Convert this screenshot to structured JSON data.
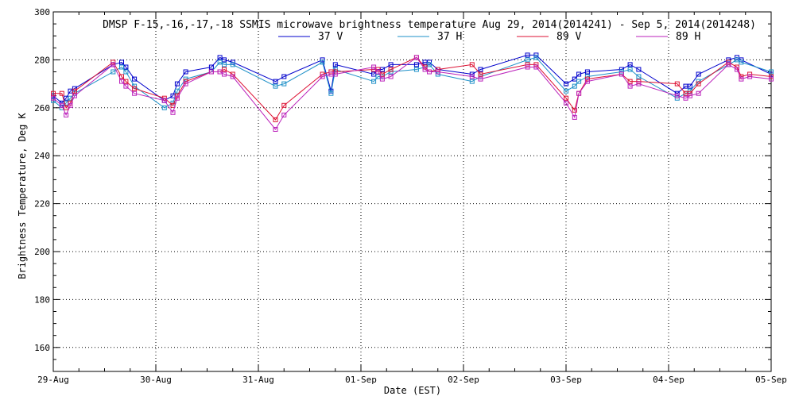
{
  "chart_data": {
    "type": "line",
    "title": "DMSP F-15,-16,-17,-18 SSMIS microwave brightness temperature Aug 29, 2014(2014241) - Sep  5, 2014(2014248)",
    "xlabel": "Date (EST)",
    "ylabel": "Brightness Temperature, Deg K",
    "xlim": [
      "2014-08-29T00:00",
      "2014-09-05T00:00"
    ],
    "ylim": [
      150,
      300
    ],
    "yticks": [
      160,
      180,
      200,
      220,
      240,
      260,
      280,
      300
    ],
    "xticks": [
      "29-Aug",
      "30-Aug",
      "31-Aug",
      "01-Sep",
      "02-Sep",
      "03-Sep",
      "04-Sep",
      "05-Sep"
    ],
    "grid": true,
    "legend_position": "top-center",
    "series": [
      {
        "name": "37 V",
        "color": "#0000cc",
        "points": [
          [
            "2014-08-29T00:00",
            265
          ],
          [
            "2014-08-29T02:00",
            262
          ],
          [
            "2014-08-29T03:00",
            264
          ],
          [
            "2014-08-29T04:00",
            267
          ],
          [
            "2014-08-29T05:00",
            268
          ],
          [
            "2014-08-29T14:00",
            278
          ],
          [
            "2014-08-29T16:00",
            279
          ],
          [
            "2014-08-29T17:00",
            277
          ],
          [
            "2014-08-29T19:00",
            272
          ],
          [
            "2014-08-30T02:00",
            263
          ],
          [
            "2014-08-30T04:00",
            265
          ],
          [
            "2014-08-30T05:00",
            270
          ],
          [
            "2014-08-30T07:00",
            275
          ],
          [
            "2014-08-30T13:00",
            277
          ],
          [
            "2014-08-30T15:00",
            281
          ],
          [
            "2014-08-30T16:00",
            280
          ],
          [
            "2014-08-30T18:00",
            279
          ],
          [
            "2014-08-31T04:00",
            271
          ],
          [
            "2014-08-31T06:00",
            273
          ],
          [
            "2014-08-31T15:00",
            280
          ],
          [
            "2014-08-31T17:00",
            267
          ],
          [
            "2014-08-31T18:00",
            278
          ],
          [
            "2014-09-01T03:00",
            274
          ],
          [
            "2014-09-01T04:00",
            276
          ],
          [
            "2014-09-01T05:00",
            276
          ],
          [
            "2014-09-01T07:00",
            278
          ],
          [
            "2014-09-01T13:00",
            278
          ],
          [
            "2014-09-01T15:00",
            279
          ],
          [
            "2014-09-01T16:00",
            279
          ],
          [
            "2014-09-01T18:00",
            276
          ],
          [
            "2014-09-02T02:00",
            274
          ],
          [
            "2014-09-02T04:00",
            276
          ],
          [
            "2014-09-02T15:00",
            282
          ],
          [
            "2014-09-02T17:00",
            282
          ],
          [
            "2014-09-03T00:00",
            270
          ],
          [
            "2014-09-03T02:00",
            272
          ],
          [
            "2014-09-03T03:00",
            274
          ],
          [
            "2014-09-03T05:00",
            275
          ],
          [
            "2014-09-03T13:00",
            276
          ],
          [
            "2014-09-03T15:00",
            278
          ],
          [
            "2014-09-03T17:00",
            276
          ],
          [
            "2014-09-04T02:00",
            266
          ],
          [
            "2014-09-04T04:00",
            269
          ],
          [
            "2014-09-04T05:00",
            269
          ],
          [
            "2014-09-04T07:00",
            274
          ],
          [
            "2014-09-04T14:00",
            280
          ],
          [
            "2014-09-04T16:00",
            281
          ],
          [
            "2014-09-04T17:00",
            280
          ],
          [
            "2014-09-05T00:00",
            274
          ]
        ]
      },
      {
        "name": "37 H",
        "color": "#1e90c8",
        "points": [
          [
            "2014-08-29T00:00",
            263
          ],
          [
            "2014-08-29T02:00",
            260
          ],
          [
            "2014-08-29T03:00",
            262
          ],
          [
            "2014-08-29T04:00",
            264
          ],
          [
            "2014-08-29T05:00",
            266
          ],
          [
            "2014-08-29T14:00",
            275
          ],
          [
            "2014-08-29T16:00",
            277
          ],
          [
            "2014-08-29T17:00",
            275
          ],
          [
            "2014-08-29T19:00",
            269
          ],
          [
            "2014-08-30T02:00",
            260
          ],
          [
            "2014-08-30T04:00",
            262
          ],
          [
            "2014-08-30T05:00",
            267
          ],
          [
            "2014-08-30T07:00",
            272
          ],
          [
            "2014-08-30T13:00",
            275
          ],
          [
            "2014-08-30T15:00",
            279
          ],
          [
            "2014-08-30T16:00",
            278
          ],
          [
            "2014-08-30T18:00",
            278
          ],
          [
            "2014-08-31T04:00",
            269
          ],
          [
            "2014-08-31T06:00",
            270
          ],
          [
            "2014-08-31T15:00",
            279
          ],
          [
            "2014-08-31T17:00",
            266
          ],
          [
            "2014-08-31T18:00",
            276
          ],
          [
            "2014-09-01T03:00",
            271
          ],
          [
            "2014-09-01T04:00",
            273
          ],
          [
            "2014-09-01T05:00",
            273
          ],
          [
            "2014-09-01T07:00",
            275
          ],
          [
            "2014-09-01T13:00",
            276
          ],
          [
            "2014-09-01T15:00",
            277
          ],
          [
            "2014-09-01T16:00",
            278
          ],
          [
            "2014-09-01T18:00",
            274
          ],
          [
            "2014-09-02T02:00",
            271
          ],
          [
            "2014-09-02T04:00",
            273
          ],
          [
            "2014-09-02T15:00",
            280
          ],
          [
            "2014-09-02T17:00",
            281
          ],
          [
            "2014-09-03T00:00",
            267
          ],
          [
            "2014-09-03T02:00",
            269
          ],
          [
            "2014-09-03T03:00",
            271
          ],
          [
            "2014-09-03T05:00",
            273
          ],
          [
            "2014-09-03T13:00",
            275
          ],
          [
            "2014-09-03T15:00",
            276
          ],
          [
            "2014-09-03T17:00",
            273
          ],
          [
            "2014-09-04T02:00",
            264
          ],
          [
            "2014-09-04T04:00",
            266
          ],
          [
            "2014-09-04T05:00",
            267
          ],
          [
            "2014-09-04T07:00",
            271
          ],
          [
            "2014-09-04T14:00",
            278
          ],
          [
            "2014-09-04T16:00",
            280
          ],
          [
            "2014-09-04T17:00",
            279
          ],
          [
            "2014-09-05T00:00",
            275
          ]
        ]
      },
      {
        "name": "89 V",
        "color": "#dd1133",
        "points": [
          [
            "2014-08-29T00:00",
            266
          ],
          [
            "2014-08-29T02:00",
            266
          ],
          [
            "2014-08-29T03:00",
            260
          ],
          [
            "2014-08-29T04:00",
            262
          ],
          [
            "2014-08-29T05:00",
            267
          ],
          [
            "2014-08-29T14:00",
            279
          ],
          [
            "2014-08-29T16:00",
            273
          ],
          [
            "2014-08-29T17:00",
            271
          ],
          [
            "2014-08-29T19:00",
            268
          ],
          [
            "2014-08-30T02:00",
            264
          ],
          [
            "2014-08-30T04:00",
            261
          ],
          [
            "2014-08-30T05:00",
            265
          ],
          [
            "2014-08-30T07:00",
            271
          ],
          [
            "2014-08-30T13:00",
            275
          ],
          [
            "2014-08-30T15:00",
            275
          ],
          [
            "2014-08-30T16:00",
            276
          ],
          [
            "2014-08-30T18:00",
            274
          ],
          [
            "2014-08-31T04:00",
            255
          ],
          [
            "2014-08-31T06:00",
            261
          ],
          [
            "2014-08-31T15:00",
            274
          ],
          [
            "2014-08-31T17:00",
            275
          ],
          [
            "2014-08-31T18:00",
            275
          ],
          [
            "2014-09-01T03:00",
            276
          ],
          [
            "2014-09-01T04:00",
            276
          ],
          [
            "2014-09-01T05:00",
            274
          ],
          [
            "2014-09-01T07:00",
            276
          ],
          [
            "2014-09-01T13:00",
            281
          ],
          [
            "2014-09-01T15:00",
            277
          ],
          [
            "2014-09-01T16:00",
            275
          ],
          [
            "2014-09-01T18:00",
            276
          ],
          [
            "2014-09-02T02:00",
            278
          ],
          [
            "2014-09-02T04:00",
            274
          ],
          [
            "2014-09-02T15:00",
            278
          ],
          [
            "2014-09-02T17:00",
            278
          ],
          [
            "2014-09-03T00:00",
            264
          ],
          [
            "2014-09-03T02:00",
            259
          ],
          [
            "2014-09-03T03:00",
            266
          ],
          [
            "2014-09-03T05:00",
            272
          ],
          [
            "2014-09-03T13:00",
            274
          ],
          [
            "2014-09-03T15:00",
            271
          ],
          [
            "2014-09-03T17:00",
            271
          ],
          [
            "2014-09-04T02:00",
            270
          ],
          [
            "2014-09-04T04:00",
            266
          ],
          [
            "2014-09-04T05:00",
            266
          ],
          [
            "2014-09-04T07:00",
            270
          ],
          [
            "2014-09-04T14:00",
            279
          ],
          [
            "2014-09-04T16:00",
            277
          ],
          [
            "2014-09-04T17:00",
            273
          ],
          [
            "2014-09-04T19:00",
            274
          ],
          [
            "2014-09-05T00:00",
            273
          ]
        ]
      },
      {
        "name": "89 H",
        "color": "#bb22bb",
        "points": [
          [
            "2014-08-29T00:00",
            264
          ],
          [
            "2014-08-29T02:00",
            261
          ],
          [
            "2014-08-29T03:00",
            257
          ],
          [
            "2014-08-29T04:00",
            261
          ],
          [
            "2014-08-29T05:00",
            265
          ],
          [
            "2014-08-29T14:00",
            278
          ],
          [
            "2014-08-29T16:00",
            271
          ],
          [
            "2014-08-29T17:00",
            269
          ],
          [
            "2014-08-29T19:00",
            266
          ],
          [
            "2014-08-30T02:00",
            263
          ],
          [
            "2014-08-30T04:00",
            258
          ],
          [
            "2014-08-30T05:00",
            264
          ],
          [
            "2014-08-30T07:00",
            270
          ],
          [
            "2014-08-30T13:00",
            275
          ],
          [
            "2014-08-30T15:00",
            275
          ],
          [
            "2014-08-30T16:00",
            274
          ],
          [
            "2014-08-30T18:00",
            273
          ],
          [
            "2014-08-31T04:00",
            251
          ],
          [
            "2014-08-31T06:00",
            257
          ],
          [
            "2014-08-31T15:00",
            273
          ],
          [
            "2014-08-31T17:00",
            274
          ],
          [
            "2014-08-31T18:00",
            274
          ],
          [
            "2014-09-01T03:00",
            277
          ],
          [
            "2014-09-01T04:00",
            275
          ],
          [
            "2014-09-01T05:00",
            272
          ],
          [
            "2014-09-01T07:00",
            273
          ],
          [
            "2014-09-01T13:00",
            281
          ],
          [
            "2014-09-01T15:00",
            276
          ],
          [
            "2014-09-01T16:00",
            275
          ],
          [
            "2014-09-01T18:00",
            275
          ],
          [
            "2014-09-02T02:00",
            273
          ],
          [
            "2014-09-02T04:00",
            272
          ],
          [
            "2014-09-02T15:00",
            277
          ],
          [
            "2014-09-02T17:00",
            277
          ],
          [
            "2014-09-03T00:00",
            262
          ],
          [
            "2014-09-03T02:00",
            256
          ],
          [
            "2014-09-03T03:00",
            266
          ],
          [
            "2014-09-03T05:00",
            271
          ],
          [
            "2014-09-03T13:00",
            274
          ],
          [
            "2014-09-03T15:00",
            269
          ],
          [
            "2014-09-03T17:00",
            270
          ],
          [
            "2014-09-04T02:00",
            265
          ],
          [
            "2014-09-04T04:00",
            264
          ],
          [
            "2014-09-04T05:00",
            265
          ],
          [
            "2014-09-04T07:00",
            266
          ],
          [
            "2014-09-04T14:00",
            278
          ],
          [
            "2014-09-04T16:00",
            276
          ],
          [
            "2014-09-04T17:00",
            272
          ],
          [
            "2014-09-04T19:00",
            273
          ],
          [
            "2014-09-05T00:00",
            272
          ]
        ]
      }
    ]
  }
}
